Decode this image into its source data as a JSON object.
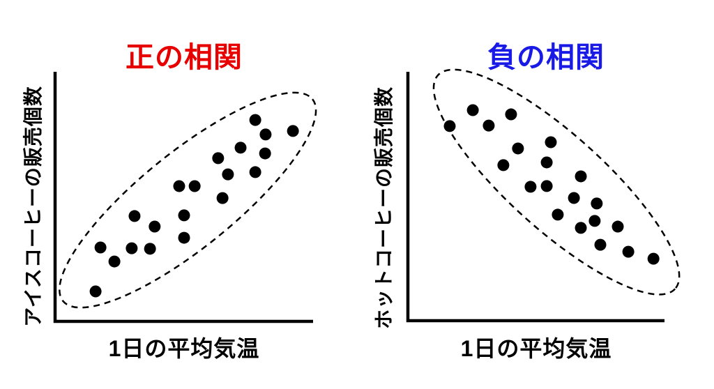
{
  "figure": {
    "background_color": "#ffffff",
    "marker_color": "#000000",
    "axis_color": "#000000",
    "positive_title_color": "#e60000",
    "negative_title_color": "#1a1ae6"
  },
  "chart_data": [
    {
      "type": "scatter",
      "title": "正の相関",
      "title_color": "#e60000",
      "xlabel": "1日の平均気温",
      "ylabel": "アイスコーヒーの販売個数",
      "marker_color": "#000000",
      "axis_color": "#000000",
      "grid": false,
      "legend": "none",
      "axis_ticks": "none",
      "xlim": [
        0,
        1
      ],
      "ylim": [
        0,
        1
      ],
      "points": [
        [
          0.776,
          0.807
        ],
        [
          0.816,
          0.749
        ],
        [
          0.922,
          0.763
        ],
        [
          0.719,
          0.696
        ],
        [
          0.632,
          0.654
        ],
        [
          0.814,
          0.673
        ],
        [
          0.67,
          0.589
        ],
        [
          0.776,
          0.598
        ],
        [
          0.481,
          0.542
        ],
        [
          0.541,
          0.542
        ],
        [
          0.649,
          0.494
        ],
        [
          0.308,
          0.422
        ],
        [
          0.5,
          0.425
        ],
        [
          0.386,
          0.38
        ],
        [
          0.5,
          0.335
        ],
        [
          0.176,
          0.296
        ],
        [
          0.297,
          0.293
        ],
        [
          0.368,
          0.291
        ],
        [
          0.23,
          0.24
        ],
        [
          0.157,
          0.12
        ]
      ],
      "cluster_ellipse": {
        "cx": 0.514,
        "cy": 0.486,
        "rx": 0.622,
        "ry": 0.184,
        "angle_deg": -39,
        "style": "dashed"
      }
    },
    {
      "type": "scatter",
      "title": "負の相関",
      "title_color": "#1a1ae6",
      "xlabel": "1日の平均気温",
      "ylabel": "ホットコーヒーの販売個数",
      "marker_color": "#000000",
      "axis_color": "#000000",
      "grid": false,
      "legend": "none",
      "axis_ticks": "none",
      "xlim": [
        0,
        1
      ],
      "ylim": [
        0,
        1
      ],
      "points": [
        [
          0.253,
          0.846
        ],
        [
          0.402,
          0.829
        ],
        [
          0.315,
          0.784
        ],
        [
          0.163,
          0.782
        ],
        [
          0.557,
          0.717
        ],
        [
          0.429,
          0.692
        ],
        [
          0.372,
          0.625
        ],
        [
          0.541,
          0.636
        ],
        [
          0.674,
          0.58
        ],
        [
          0.478,
          0.538
        ],
        [
          0.541,
          0.541
        ],
        [
          0.647,
          0.493
        ],
        [
          0.736,
          0.471
        ],
        [
          0.584,
          0.426
        ],
        [
          0.728,
          0.401
        ],
        [
          0.674,
          0.373
        ],
        [
          0.818,
          0.378
        ],
        [
          0.75,
          0.305
        ],
        [
          0.859,
          0.277
        ],
        [
          0.957,
          0.249
        ]
      ],
      "cluster_ellipse": {
        "cx": 0.579,
        "cy": 0.557,
        "rx": 0.622,
        "ry": 0.185,
        "angle_deg": 42,
        "style": "dashed"
      }
    }
  ]
}
